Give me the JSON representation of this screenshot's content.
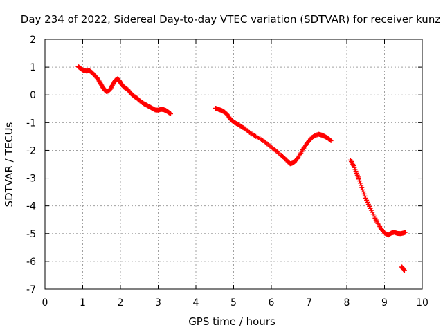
{
  "chart_data": {
    "type": "scatter",
    "title": "Day 234 of 2022, Sidereal Day-to-day VTEC variation (SDTVAR) for receiver kunz",
    "xlabel": "GPS time / hours",
    "ylabel": "SDTVAR / TECUs",
    "xlim": [
      0,
      10
    ],
    "ylim": [
      -7,
      2
    ],
    "xticks": [
      "0",
      "1",
      "2",
      "3",
      "4",
      "5",
      "6",
      "7",
      "8",
      "9",
      "10"
    ],
    "yticks": [
      "2",
      "1",
      "0",
      "-1",
      "-2",
      "-3",
      "-4",
      "-5",
      "-6",
      "-7"
    ],
    "grid": true,
    "marker": "plus",
    "color": "#ff0000",
    "segments": [
      {
        "x": [
          0.88,
          0.95,
          1.02,
          1.1,
          1.18,
          1.25,
          1.32,
          1.4,
          1.47,
          1.53,
          1.58,
          1.63,
          1.68,
          1.74,
          1.8,
          1.86,
          1.92,
          1.97,
          2.02,
          2.08,
          2.13,
          2.2,
          2.28,
          2.36,
          2.44,
          2.52,
          2.6,
          2.68,
          2.76,
          2.84,
          2.92,
          3.0,
          3.08,
          3.14,
          3.2,
          3.27,
          3.33
        ],
        "y": [
          1.02,
          0.95,
          0.88,
          0.86,
          0.87,
          0.8,
          0.7,
          0.58,
          0.42,
          0.28,
          0.18,
          0.12,
          0.14,
          0.22,
          0.38,
          0.52,
          0.58,
          0.52,
          0.4,
          0.3,
          0.25,
          0.18,
          0.05,
          -0.05,
          -0.12,
          -0.22,
          -0.3,
          -0.36,
          -0.42,
          -0.48,
          -0.54,
          -0.55,
          -0.52,
          -0.53,
          -0.56,
          -0.62,
          -0.68
        ]
      },
      {
        "x": [
          4.52,
          4.6,
          4.68,
          4.76,
          4.84,
          4.92,
          5.0,
          5.1,
          5.2,
          5.3,
          5.42,
          5.55,
          5.7,
          5.85,
          6.0,
          6.15,
          6.3,
          6.42,
          6.5,
          6.58,
          6.66,
          6.76,
          6.86,
          6.96,
          7.06,
          7.16,
          7.26,
          7.34,
          7.42,
          7.5,
          7.58
        ],
        "y": [
          -0.48,
          -0.52,
          -0.56,
          -0.62,
          -0.72,
          -0.88,
          -0.98,
          -1.05,
          -1.14,
          -1.22,
          -1.35,
          -1.47,
          -1.58,
          -1.72,
          -1.88,
          -2.05,
          -2.22,
          -2.38,
          -2.48,
          -2.45,
          -2.35,
          -2.15,
          -1.92,
          -1.72,
          -1.55,
          -1.46,
          -1.42,
          -1.45,
          -1.5,
          -1.56,
          -1.65
        ]
      },
      {
        "x": [
          8.1,
          8.18,
          8.26,
          8.34,
          8.42,
          8.5,
          8.6,
          8.7,
          8.8,
          8.9,
          9.0,
          9.1,
          9.18,
          9.26,
          9.34,
          9.42,
          9.5,
          9.55
        ],
        "y": [
          -2.35,
          -2.55,
          -2.82,
          -3.1,
          -3.42,
          -3.72,
          -4.02,
          -4.3,
          -4.58,
          -4.8,
          -4.98,
          -5.05,
          -4.98,
          -4.95,
          -4.99,
          -5.0,
          -4.98,
          -4.95
        ]
      },
      {
        "x": [
          9.46,
          9.5,
          9.53
        ],
        "y": [
          -6.2,
          -6.28,
          -6.33
        ]
      }
    ]
  }
}
